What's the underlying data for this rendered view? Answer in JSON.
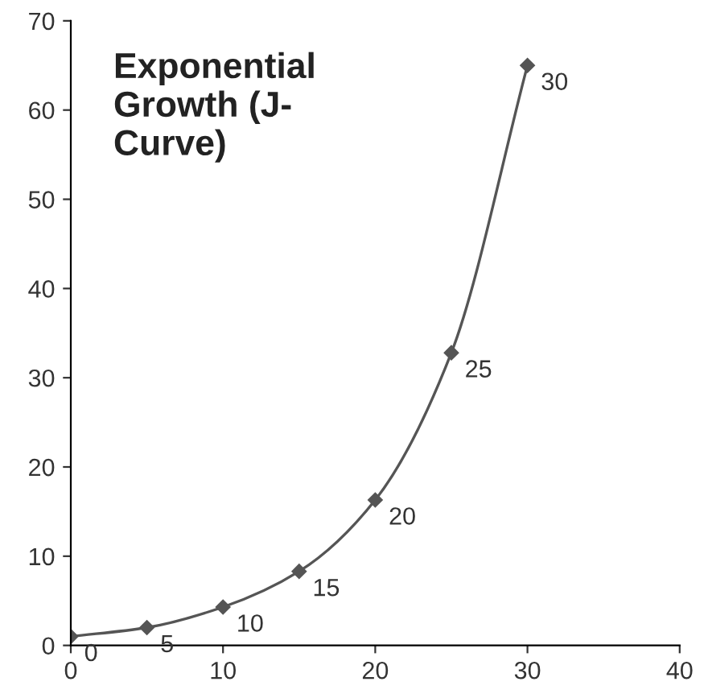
{
  "chart_data": {
    "type": "line",
    "title": "Exponential\nGrowth (J-\nCurve)",
    "x": [
      0,
      5,
      10,
      15,
      20,
      25,
      30
    ],
    "series": [
      {
        "color": "#555555",
        "values": [
          1,
          2,
          4.3,
          8.3,
          16.3,
          32.8,
          65
        ]
      }
    ],
    "xlim": [
      0,
      40
    ],
    "xticks": [
      0,
      10,
      20,
      30,
      40
    ],
    "ylim": [
      0,
      70
    ],
    "yticks": [
      0,
      10,
      20,
      30,
      40,
      50,
      60,
      70
    ],
    "marker": "diamond",
    "line_style": "solid",
    "grid": false,
    "legend": false,
    "annotations": [
      {
        "text": "0",
        "x": 0,
        "y": 1
      },
      {
        "text": "5",
        "x": 5,
        "y": 2
      },
      {
        "text": "10",
        "x": 10,
        "y": 4.3
      },
      {
        "text": "15",
        "x": 15,
        "y": 8.3
      },
      {
        "text": "20",
        "x": 20,
        "y": 16.3
      },
      {
        "text": "25",
        "x": 25,
        "y": 32.8
      },
      {
        "text": "30",
        "x": 30,
        "y": 65
      }
    ]
  }
}
